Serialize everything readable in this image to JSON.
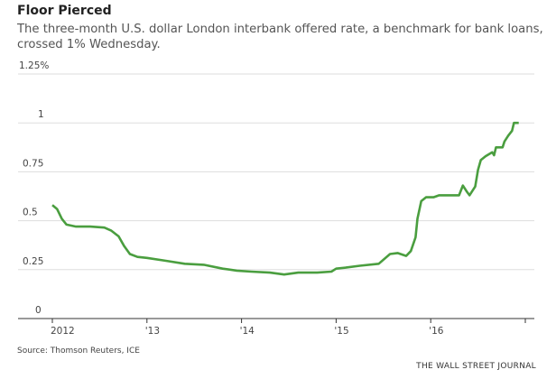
{
  "title": "Floor Pierced",
  "subtitle": "The three-month U.S. dollar London interbank offered rate, a benchmark for bank loans, crossed 1% Wednesday.",
  "source": "Source: Thomson Reuters, ICE",
  "brand": "THE WALL STREET JOURNAL",
  "colors": {
    "line": "#4a9e3f",
    "grid": "#dddddd",
    "axis": "#333333"
  },
  "chart_data": {
    "type": "line",
    "title": "Floor Pierced",
    "ylim": [
      0,
      1.25
    ],
    "xlim": [
      2011.7,
      2017.1
    ],
    "grid": true,
    "y_ticks": [
      {
        "v": 0,
        "label": "0"
      },
      {
        "v": 0.25,
        "label": "0.25"
      },
      {
        "v": 0.5,
        "label": "0.5"
      },
      {
        "v": 0.75,
        "label": "0.75"
      },
      {
        "v": 1,
        "label": "1"
      },
      {
        "v": 1.25,
        "label": "1.25%"
      }
    ],
    "x_ticks": [
      {
        "v": 2012,
        "label": "2012"
      },
      {
        "v": 2013,
        "label": "'13"
      },
      {
        "v": 2014,
        "label": "'14"
      },
      {
        "v": 2015,
        "label": "'15"
      },
      {
        "v": 2016,
        "label": "'16"
      },
      {
        "v": 2017,
        "label": ""
      }
    ],
    "x": [
      2012.0,
      2012.05,
      2012.1,
      2012.15,
      2012.25,
      2012.4,
      2012.55,
      2012.62,
      2012.7,
      2012.76,
      2012.82,
      2012.9,
      2013.0,
      2013.2,
      2013.4,
      2013.6,
      2013.8,
      2013.95,
      2014.1,
      2014.3,
      2014.45,
      2014.6,
      2014.8,
      2014.95,
      2015.0,
      2015.1,
      2015.25,
      2015.45,
      2015.57,
      2015.65,
      2015.74,
      2015.79,
      2015.84,
      2015.86,
      2015.9,
      2015.95,
      2016.03,
      2016.09,
      2016.14,
      2016.3,
      2016.34,
      2016.38,
      2016.41,
      2016.47,
      2016.5,
      2016.53,
      2016.58,
      2016.65,
      2016.67,
      2016.69,
      2016.76,
      2016.78,
      2016.82,
      2016.86,
      2016.88,
      2016.93
    ],
    "y": [
      0.58,
      0.56,
      0.51,
      0.48,
      0.47,
      0.47,
      0.465,
      0.45,
      0.42,
      0.37,
      0.33,
      0.315,
      0.31,
      0.295,
      0.28,
      0.275,
      0.255,
      0.245,
      0.24,
      0.235,
      0.225,
      0.235,
      0.235,
      0.24,
      0.255,
      0.26,
      0.27,
      0.28,
      0.33,
      0.335,
      0.32,
      0.345,
      0.415,
      0.51,
      0.6,
      0.62,
      0.62,
      0.63,
      0.63,
      0.63,
      0.68,
      0.65,
      0.63,
      0.675,
      0.76,
      0.81,
      0.83,
      0.85,
      0.835,
      0.875,
      0.875,
      0.905,
      0.935,
      0.96,
      1.0,
      1.0
    ]
  }
}
